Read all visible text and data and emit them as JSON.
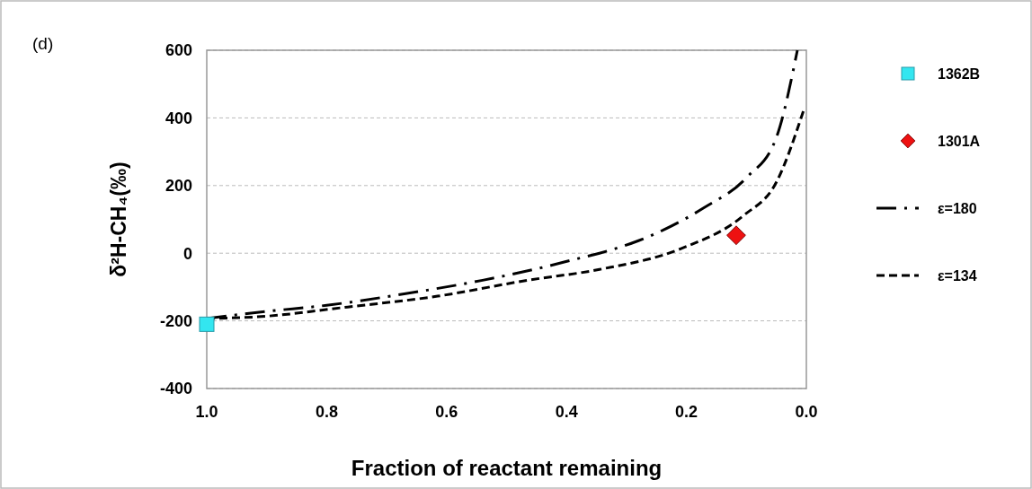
{
  "chart_data": {
    "type": "line",
    "xlabel": "Fraction of reactant remaining",
    "ylabel": "δ²H-CH₄(‰)",
    "annotations": [
      "(d)"
    ],
    "xlim": [
      1,
      0
    ],
    "xticks": [
      {
        "value": 1,
        "label": "1.0"
      },
      {
        "value": 0.8,
        "label": "0.8"
      },
      {
        "value": 0.6,
        "label": "0.6"
      },
      {
        "value": 0.4,
        "label": "0.4"
      },
      {
        "value": 0.2,
        "label": "0.2"
      },
      {
        "value": 0,
        "label": "0.0"
      }
    ],
    "ylim": [
      -400,
      600
    ],
    "yticks": [
      -400,
      -200,
      0,
      200,
      400,
      600
    ],
    "grid": "y",
    "legend": "right",
    "series": [
      {
        "name": "1362B",
        "type": "scatter",
        "marker": "square",
        "color": "#33e6f0",
        "x": [
          1.0
        ],
        "values": [
          -210
        ]
      },
      {
        "name": "1301A",
        "type": "scatter",
        "marker": "diamond",
        "color": "#ee1111",
        "x": [
          0.117
        ],
        "values": [
          53
        ]
      },
      {
        "name": "ε=180",
        "line_style": "dashdot",
        "marker": "none",
        "color": "#000000",
        "x": [
          1.0,
          0.9,
          0.8,
          0.666,
          0.54,
          0.435,
          0.388,
          0.345,
          0.28,
          0.172,
          0.1,
          0.05,
          0.015
        ],
        "values": [
          -193,
          -172,
          -154,
          -119,
          -80,
          -40,
          -19,
          0,
          37,
          133,
          223,
          342,
          600
        ]
      },
      {
        "name": "ε=134",
        "line_style": "dashed",
        "marker": "none",
        "color": "#000000",
        "x": [
          1.0,
          0.915,
          0.765,
          0.615,
          0.465,
          0.345,
          0.21,
          0.105,
          0.05,
          0.005
        ],
        "values": [
          -193,
          -188,
          -159,
          -127,
          -80,
          -48,
          13,
          111,
          210,
          420
        ]
      }
    ]
  }
}
